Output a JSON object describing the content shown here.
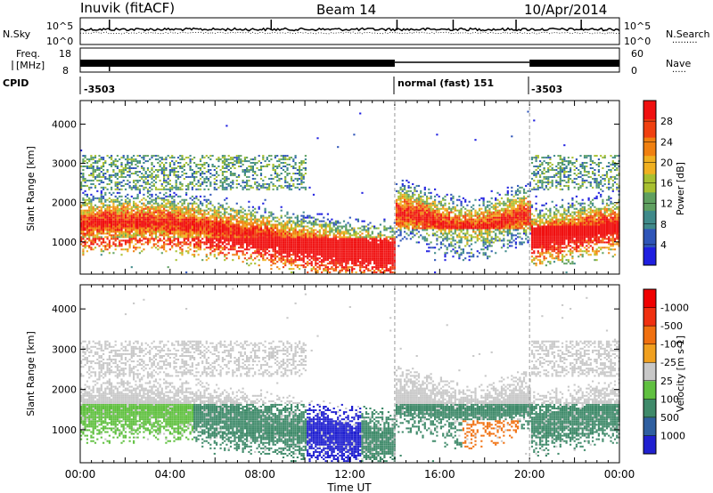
{
  "header": {
    "title": "Inuvik (fitACF)",
    "beam": "Beam 14",
    "date": "10/Apr/2014"
  },
  "noise_panel": {
    "left_label": "N.Sky",
    "right_label": "N.Search",
    "left_ticks": [
      "10^5",
      "10^0"
    ],
    "right_ticks": [
      "10^5",
      "10^0"
    ]
  },
  "freq_panel": {
    "left_label_1": "Freq.",
    "left_label_2": "[MHz]",
    "right_label": "Nave",
    "left_ticks": [
      "18",
      "8"
    ],
    "right_ticks": [
      "60",
      "0"
    ]
  },
  "cpid_panel": {
    "label": "CPID",
    "segments": [
      {
        "text": "-3503",
        "start_hour": 0
      },
      {
        "text": "normal (fast) 151",
        "start_hour": 14
      },
      {
        "text": "-3503",
        "start_hour": 20
      }
    ]
  },
  "chart_data": [
    {
      "type": "heatmap",
      "name": "power",
      "ylabel": "Slant Range [km]",
      "xlabel": "",
      "yticks": [
        1000,
        2000,
        3000,
        4000
      ],
      "ylim": [
        180,
        4600
      ],
      "xlim": [
        0,
        24
      ],
      "colorbar": {
        "label": "Power [dB]",
        "ticks": [
          "4",
          "8",
          "12",
          "16",
          "20",
          "24",
          "28"
        ],
        "colors": [
          "#1f1fe0",
          "#2f55b8",
          "#3f8a8a",
          "#5fa060",
          "#a8c030",
          "#f0b020",
          "#f08010",
          "#f04010",
          "#f01010"
        ]
      },
      "dashed_lines_hours": [
        14,
        20
      ]
    },
    {
      "type": "heatmap",
      "name": "velocity",
      "ylabel": "Slant Range [km]",
      "xlabel": "Time UT",
      "yticks": [
        1000,
        2000,
        3000,
        4000
      ],
      "ylim": [
        180,
        4600
      ],
      "xlim": [
        0,
        24
      ],
      "xticklabels": [
        "00:00",
        "04:00",
        "08:00",
        "12:00",
        "16:00",
        "20:00",
        "00:00"
      ],
      "colorbar": {
        "label": "Velocity [m s-1]",
        "ticks": [
          "1000",
          "500",
          "100",
          "25",
          "-25",
          "-100",
          "-500",
          "-1000"
        ],
        "colors": [
          "#2020d0",
          "#2f5fa0",
          "#3f8a6a",
          "#60c040",
          "#c8c8c8",
          "#f0a020",
          "#f07010",
          "#f03010",
          "#f00000"
        ]
      },
      "dashed_lines_hours": [
        14,
        20
      ]
    }
  ]
}
